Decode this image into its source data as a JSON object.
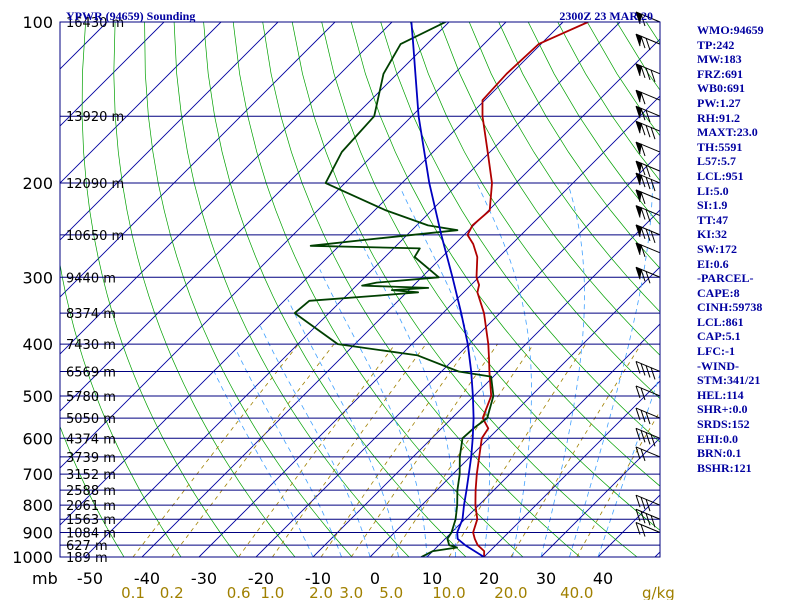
{
  "header": {
    "left": "YPWR (94659) Sounding",
    "right": "2300Z 23 MAR 20"
  },
  "chart_data": {
    "type": "skew-t log-p sounding diagram",
    "pressure_axis": {
      "unit_label": "mb",
      "ticks": [
        100,
        200,
        300,
        400,
        500,
        600,
        700,
        800,
        900,
        1000
      ],
      "scale": "log",
      "range": [
        1000,
        100
      ]
    },
    "temperature_axis": {
      "ticks": [
        -50,
        -40,
        -30,
        -20,
        -10,
        0,
        10,
        20,
        30,
        40
      ],
      "skewed": true
    },
    "mixing_ratio_axis": {
      "unit_label": "g/kg",
      "ticks": [
        "0.1",
        "0.2",
        "0.6",
        "1.0",
        "2.0",
        "3.0",
        "5.0",
        "10.0",
        "20.0",
        "40.0"
      ]
    },
    "height_labels": [
      {
        "p": 100,
        "text": "16430 m"
      },
      {
        "p": 150,
        "text": "13920 m"
      },
      {
        "p": 200,
        "text": "12090 m"
      },
      {
        "p": 250,
        "text": "10650 m"
      },
      {
        "p": 300,
        "text": "9440 m"
      },
      {
        "p": 350,
        "text": "8374 m"
      },
      {
        "p": 400,
        "text": "7430 m"
      },
      {
        "p": 450,
        "text": "6569 m"
      },
      {
        "p": 500,
        "text": "5780 m"
      },
      {
        "p": 550,
        "text": "5050 m"
      },
      {
        "p": 600,
        "text": "4374 m"
      },
      {
        "p": 650,
        "text": "3739 m"
      },
      {
        "p": 700,
        "text": "3152 m"
      },
      {
        "p": 750,
        "text": "2588 m"
      },
      {
        "p": 800,
        "text": "2061 m"
      },
      {
        "p": 850,
        "text": "1563 m"
      },
      {
        "p": 900,
        "text": "1084 m"
      },
      {
        "p": 950,
        "text": "627 m"
      },
      {
        "p": 1000,
        "text": "189 m"
      }
    ],
    "series": [
      {
        "key": "temperature",
        "color": "#b00000",
        "points": [
          [
            1000,
            20.0
          ],
          [
            975,
            19.0
          ],
          [
            950,
            16.8
          ],
          [
            925,
            15.2
          ],
          [
            900,
            13.8
          ],
          [
            850,
            12.2
          ],
          [
            800,
            9.4
          ],
          [
            750,
            6.8
          ],
          [
            700,
            4.2
          ],
          [
            650,
            1.6
          ],
          [
            600,
            -1.2
          ],
          [
            575,
            -1.8
          ],
          [
            550,
            -4.6
          ],
          [
            500,
            -7.0
          ],
          [
            450,
            -11.6
          ],
          [
            425,
            -14.0
          ],
          [
            400,
            -16.6
          ],
          [
            350,
            -22.8
          ],
          [
            320,
            -27.6
          ],
          [
            310,
            -28.6
          ],
          [
            300,
            -30.4
          ],
          [
            275,
            -33.8
          ],
          [
            260,
            -36.8
          ],
          [
            250,
            -39.4
          ],
          [
            240,
            -40.2
          ],
          [
            225,
            -39.8
          ],
          [
            200,
            -44.2
          ],
          [
            175,
            -50.4
          ],
          [
            150,
            -57.6
          ],
          [
            140,
            -60.4
          ],
          [
            125,
            -60.8
          ],
          [
            110,
            -60.4
          ],
          [
            100,
            -55.6
          ]
        ]
      },
      {
        "key": "dewpoint",
        "color": "#004000",
        "points": [
          [
            1000,
            9.0
          ],
          [
            975,
            10.0
          ],
          [
            960,
            13.6
          ],
          [
            950,
            11.8
          ],
          [
            925,
            10.4
          ],
          [
            900,
            10.0
          ],
          [
            850,
            8.4
          ],
          [
            800,
            6.2
          ],
          [
            750,
            3.6
          ],
          [
            700,
            1.2
          ],
          [
            650,
            -1.8
          ],
          [
            600,
            -4.6
          ],
          [
            575,
            -4.4
          ],
          [
            550,
            -3.8
          ],
          [
            500,
            -6.6
          ],
          [
            460,
            -10.4
          ],
          [
            450,
            -17.0
          ],
          [
            420,
            -27.0
          ],
          [
            400,
            -43.0
          ],
          [
            350,
            -56.0
          ],
          [
            332,
            -55.6
          ],
          [
            325,
            -45.0
          ],
          [
            320,
            -38.0
          ],
          [
            317,
            -43.0
          ],
          [
            314,
            -37.0
          ],
          [
            311,
            -49.0
          ],
          [
            307,
            -47.0
          ],
          [
            300,
            -37.0
          ],
          [
            275,
            -44.8
          ],
          [
            265,
            -45.4
          ],
          [
            262,
            -65.0
          ],
          [
            255,
            -56.0
          ],
          [
            245,
            -42.0
          ],
          [
            240,
            -48.0
          ],
          [
            225,
            -58.0
          ],
          [
            200,
            -73.4
          ],
          [
            175,
            -76.0
          ],
          [
            150,
            -76.6
          ],
          [
            125,
            -82.4
          ],
          [
            110,
            -84.6
          ],
          [
            100,
            -80.6
          ]
        ]
      },
      {
        "key": "parcel",
        "color": "#0000c0",
        "points": [
          [
            1000,
            20.0
          ],
          [
            950,
            14.6
          ],
          [
            925,
            12.2
          ],
          [
            900,
            11.0
          ],
          [
            850,
            9.6
          ],
          [
            800,
            7.4
          ],
          [
            750,
            5.2
          ],
          [
            700,
            2.8
          ],
          [
            650,
            0.2
          ],
          [
            600,
            -2.8
          ],
          [
            550,
            -6.2
          ],
          [
            500,
            -10.2
          ],
          [
            450,
            -14.8
          ],
          [
            400,
            -20.2
          ],
          [
            350,
            -26.8
          ],
          [
            300,
            -34.6
          ],
          [
            250,
            -44.0
          ],
          [
            200,
            -55.2
          ],
          [
            150,
            -68.8
          ],
          [
            125,
            -76.8
          ],
          [
            110,
            -82.4
          ],
          [
            100,
            -86.6
          ]
        ]
      }
    ]
  },
  "indices": [
    "WMO:94659",
    "TP:242",
    "MW:183",
    "FRZ:691",
    "WB0:691",
    "PW:1.27",
    "RH:91.2",
    "MAXT:23.0",
    "TH:5591",
    "L57:5.7",
    "LCL:951",
    "LI:5.0",
    "SI:1.9",
    "TT:47",
    "KI:32",
    "SW:172",
    "EI:0.6",
    "-PARCEL-",
    "CAPE:8",
    "CINH:59738",
    "LCL:861",
    "CAP:5.1",
    "LFC:-1",
    "-WIND-",
    "STM:341/21",
    "HEL:114",
    "SHR+:0.0",
    "SRDS:152",
    "EHI:0.0",
    "BRN:0.1",
    "BSHR:121"
  ],
  "colors": {
    "isobar": "#000080",
    "isotherm": "#0000a0",
    "dry_adiabat": "#00a000",
    "moist_adiabat": "#40a0ff",
    "mixing_ratio": "#a08000"
  }
}
